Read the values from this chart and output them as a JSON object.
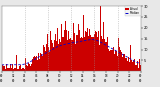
{
  "n_minutes": 1440,
  "seed": 42,
  "bg_color": "#e8e8e8",
  "plot_bg_color": "#ffffff",
  "bar_color": "#cc0000",
  "median_color": "#0000cc",
  "ylim": [
    0,
    30
  ],
  "ytick_labels": [
    "5",
    "10",
    "15",
    "20",
    "25",
    "30"
  ],
  "ytick_vals": [
    5,
    10,
    15,
    20,
    25,
    30
  ],
  "legend_actual_color": "#cc0000",
  "legend_median_color": "#0000cc",
  "legend_actual_label": "Actual",
  "legend_median_label": "Median",
  "vline_color": "#999999",
  "vline_positions": [
    240,
    480,
    720,
    960,
    1200
  ]
}
